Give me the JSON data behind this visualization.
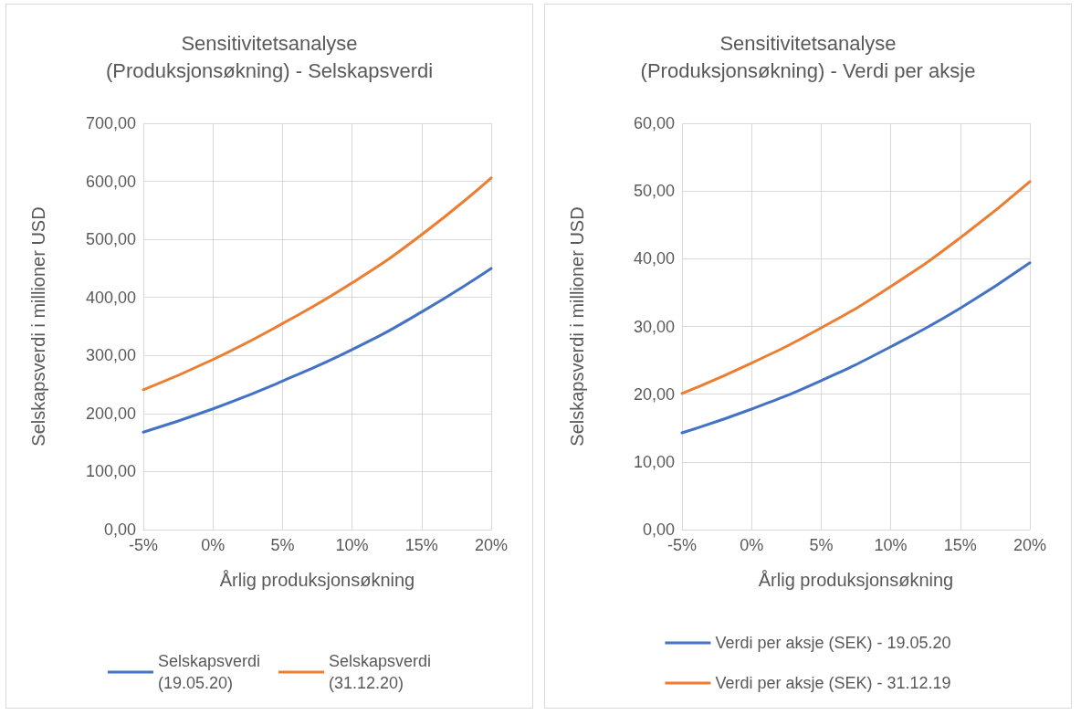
{
  "chart_data": [
    {
      "type": "line",
      "title": "Sensitivitetsanalyse\n(Produksjonsøkning) - Selskapsverdi",
      "xlabel": "Årlig produksjonsøkning",
      "ylabel": "Selskapsverdi i millioner USD",
      "categories": [
        "-5%",
        "0%",
        "5%",
        "10%",
        "15%",
        "20%"
      ],
      "series": [
        {
          "name": "Selskapsverdi\n(19.05.20)",
          "color": "#4472c4",
          "values": [
            168,
            208,
            256,
            310,
            375,
            450
          ]
        },
        {
          "name": "Selskapsverdi\n(31.12.20)",
          "color": "#ed7d31",
          "values": [
            241,
            293,
            355,
            425,
            508,
            606
          ]
        }
      ],
      "ylim": [
        0,
        700
      ],
      "yticks": [
        {
          "value": 0,
          "label": "0,00"
        },
        {
          "value": 100,
          "label": "100,00"
        },
        {
          "value": 200,
          "label": "200,00"
        },
        {
          "value": 300,
          "label": "300,00"
        },
        {
          "value": 400,
          "label": "400,00"
        },
        {
          "value": 500,
          "label": "500,00"
        },
        {
          "value": 600,
          "label": "600,00"
        },
        {
          "value": 700,
          "label": "700,00"
        }
      ],
      "grid": true,
      "legend": "bottom",
      "marker": "none",
      "line_style": "solid"
    },
    {
      "type": "line",
      "title": "Sensitivitetsanalyse\n(Produksjonsøkning) - Verdi per aksje",
      "xlabel": "Årlig produksjonsøkning",
      "ylabel": "Selskapsverdi i millioner USD",
      "categories": [
        "-5%",
        "0%",
        "5%",
        "10%",
        "15%",
        "20%"
      ],
      "series": [
        {
          "name": "Verdi per aksje (SEK) - 19.05.20",
          "color": "#4472c4",
          "values": [
            14.3,
            17.8,
            22.0,
            27.0,
            32.7,
            39.4
          ]
        },
        {
          "name": "Verdi per aksje (SEK) - 31.12.19",
          "color": "#ed7d31",
          "values": [
            20.1,
            24.6,
            29.8,
            35.9,
            43.1,
            51.4
          ]
        }
      ],
      "ylim": [
        0,
        60
      ],
      "yticks": [
        {
          "value": 0,
          "label": "0,00"
        },
        {
          "value": 10,
          "label": "10,00"
        },
        {
          "value": 20,
          "label": "20,00"
        },
        {
          "value": 30,
          "label": "30,00"
        },
        {
          "value": 40,
          "label": "40,00"
        },
        {
          "value": 50,
          "label": "50,00"
        },
        {
          "value": 60,
          "label": "60,00"
        }
      ],
      "grid": true,
      "legend": "bottom",
      "marker": "none",
      "line_style": "solid"
    }
  ]
}
